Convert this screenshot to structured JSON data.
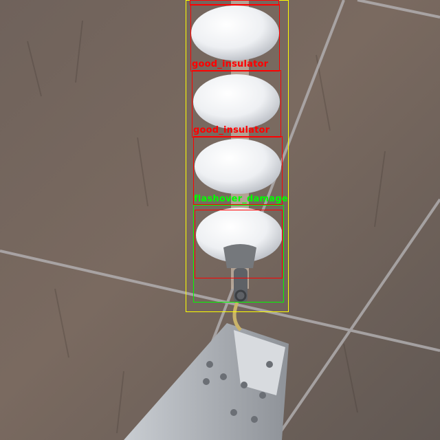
{
  "image": {
    "subject": "string insulators on transmission tower",
    "background_color": "#6a5e58"
  },
  "detections": [
    {
      "class": "good_insulator",
      "color": "#ff0000"
    },
    {
      "class": "good_insulator",
      "color": "#ff0000"
    },
    {
      "class": "flashover_damage",
      "color": "#00ff00"
    }
  ],
  "extra_boxes": [
    {
      "color": "#ffff00",
      "role": "insulator-string"
    },
    {
      "color": "#ff0000",
      "role": "insulator-disc"
    },
    {
      "color": "#00ff00",
      "role": "damaged-disc"
    }
  ]
}
